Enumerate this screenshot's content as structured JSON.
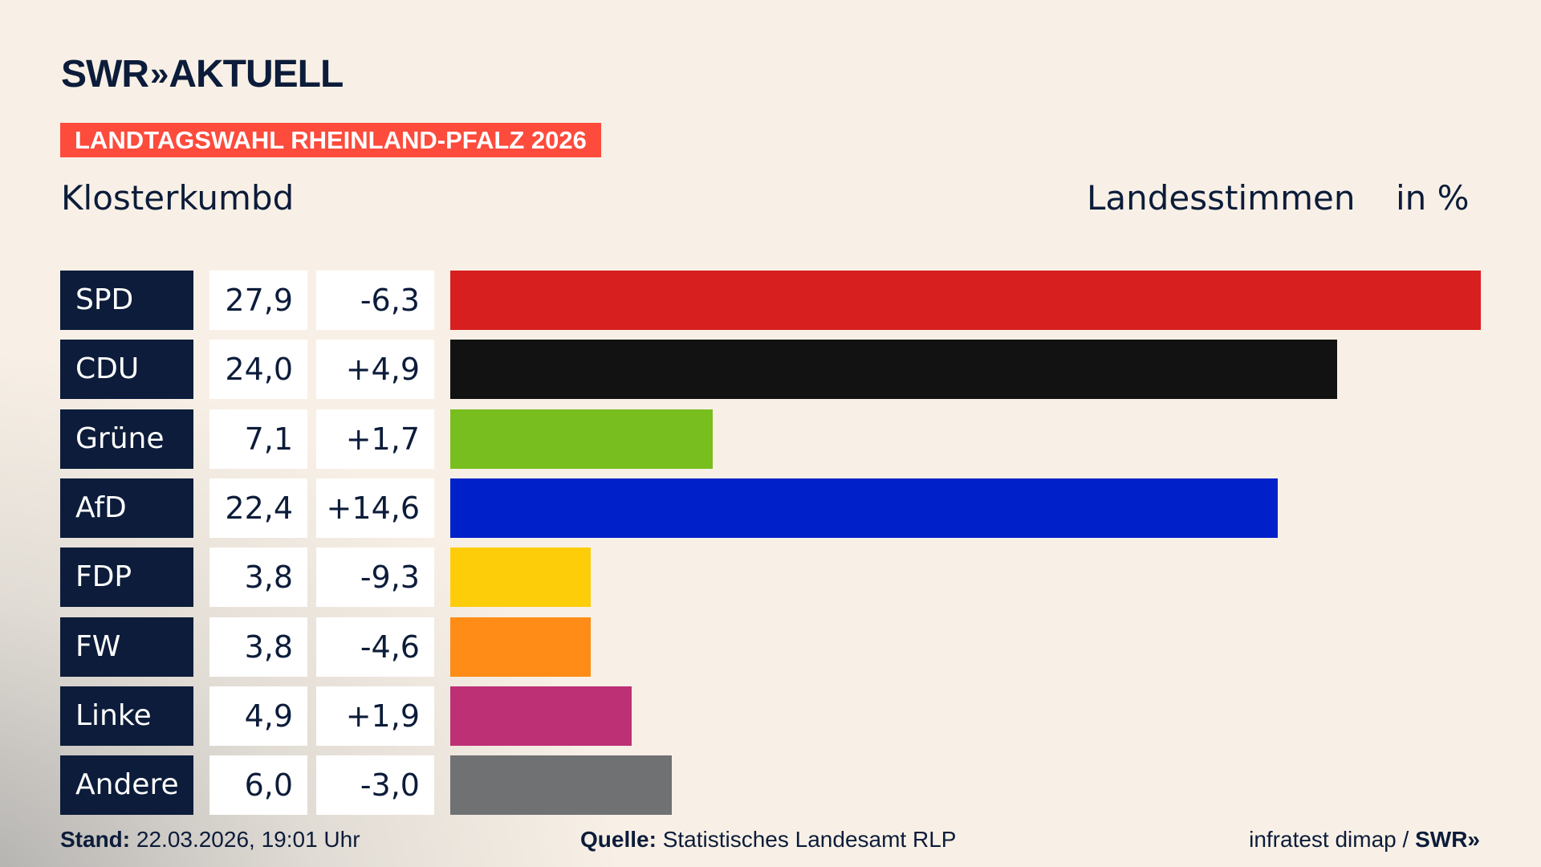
{
  "header": {
    "logo_text": "SWR",
    "logo_chevrons": "»",
    "logo_suffix": "AKTUELL",
    "banner": "LANDTAGSWAHL RHEINLAND-PFALZ 2026",
    "place": "Klosterkumbd",
    "measure": "Landesstimmen",
    "unit": "in %"
  },
  "chart_data": {
    "type": "bar",
    "orientation": "horizontal",
    "categories": [
      "SPD",
      "CDU",
      "Grüne",
      "AfD",
      "FDP",
      "FW",
      "Linke",
      "Andere"
    ],
    "values": [
      27.9,
      24.0,
      7.1,
      22.4,
      3.8,
      3.8,
      4.9,
      6.0
    ],
    "value_labels": [
      "27,9",
      "24,0",
      "7,1",
      "22,4",
      "3,8",
      "3,8",
      "4,9",
      "6,0"
    ],
    "diff_labels": [
      "-6,3",
      "+4,9",
      "+1,7",
      "+14,6",
      "-9,3",
      "-4,6",
      "+1,9",
      "-3,0"
    ],
    "diffs": [
      -6.3,
      4.9,
      1.7,
      14.6,
      -9.3,
      -4.6,
      1.9,
      -3.0
    ],
    "colors": [
      "#d81f20",
      "#121212",
      "#78be1e",
      "#0021c9",
      "#fecd0a",
      "#ff8c16",
      "#bd3075",
      "#707173"
    ],
    "grid": false
  },
  "footer": {
    "stand_label": "Stand:",
    "stand_value": "22.03.2026, 19:01 Uhr",
    "quelle_label": "Quelle:",
    "quelle_value": "Statistisches Landesamt RLP",
    "credit": "infratest dimap / ",
    "credit_logo": "SWR»"
  }
}
